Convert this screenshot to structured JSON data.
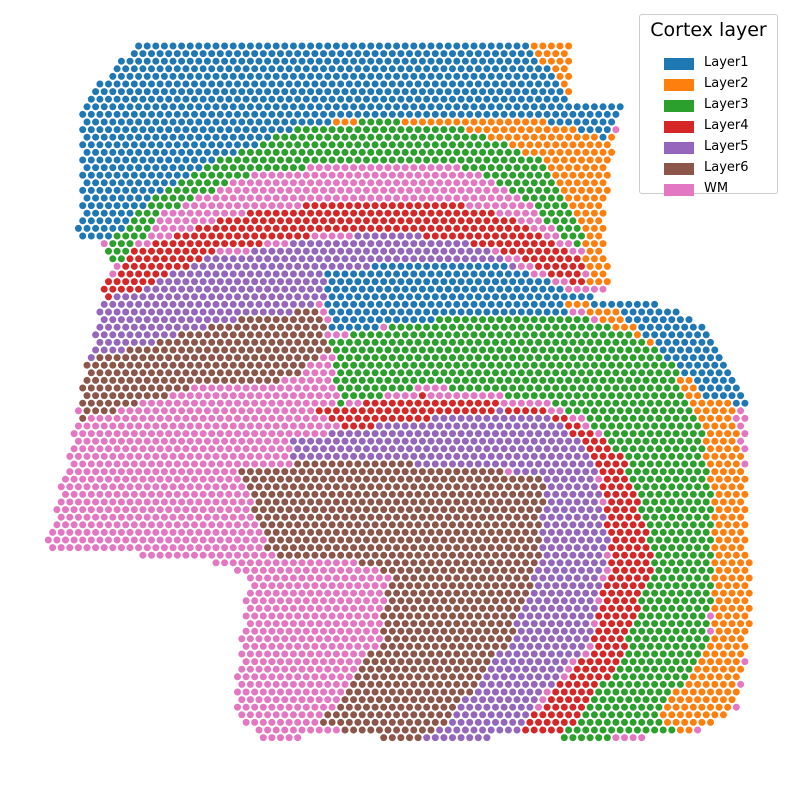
{
  "chart_data": {
    "type": "scatter",
    "title": "",
    "xlabel": "",
    "ylabel": "",
    "axes_visible": false,
    "grid": false,
    "legend": {
      "title": "Cortex layer",
      "placement": "top-right",
      "entries": [
        {
          "label": "Layer1",
          "color": "#1f77b4"
        },
        {
          "label": "Layer2",
          "color": "#ff7f0e"
        },
        {
          "label": "Layer3",
          "color": "#2ca02c"
        },
        {
          "label": "Layer4",
          "color": "#d62728"
        },
        {
          "label": "Layer5",
          "color": "#9467bd"
        },
        {
          "label": "Layer6",
          "color": "#8c564b"
        },
        {
          "label": "WM",
          "color": "#e377c2"
        }
      ]
    },
    "point_shape": "circle",
    "layout": "hexagonal spot grid (spatial transcriptomics), two tissue sections"
  }
}
